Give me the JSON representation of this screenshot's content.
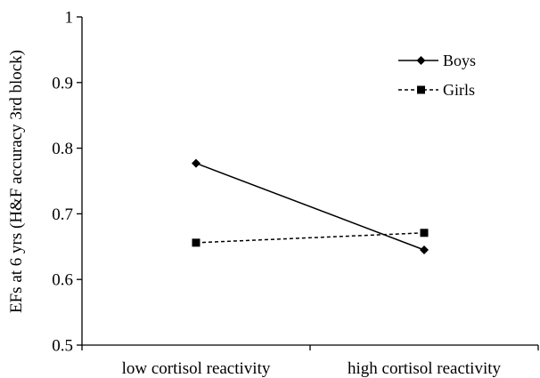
{
  "chart_data": {
    "type": "line",
    "title": "",
    "xlabel": "",
    "ylabel": "EFs at 6 yrs (H&F accuracy 3rd block)",
    "ylim": [
      0.5,
      1
    ],
    "yticks": [
      "0.5",
      "0.6",
      "0.7",
      "0.8",
      "0.9",
      "1"
    ],
    "categories": [
      "low cortisol reactivity",
      "high cortisol reactivity"
    ],
    "grid": false,
    "legend_position": "top-right",
    "series": [
      {
        "name": "Boys",
        "values": [
          0.777,
          0.645
        ],
        "marker": "diamond",
        "line_style": "solid",
        "color": "#000000"
      },
      {
        "name": "Girls",
        "values": [
          0.656,
          0.671
        ],
        "marker": "square",
        "line_style": "dashed",
        "color": "#000000"
      }
    ]
  }
}
